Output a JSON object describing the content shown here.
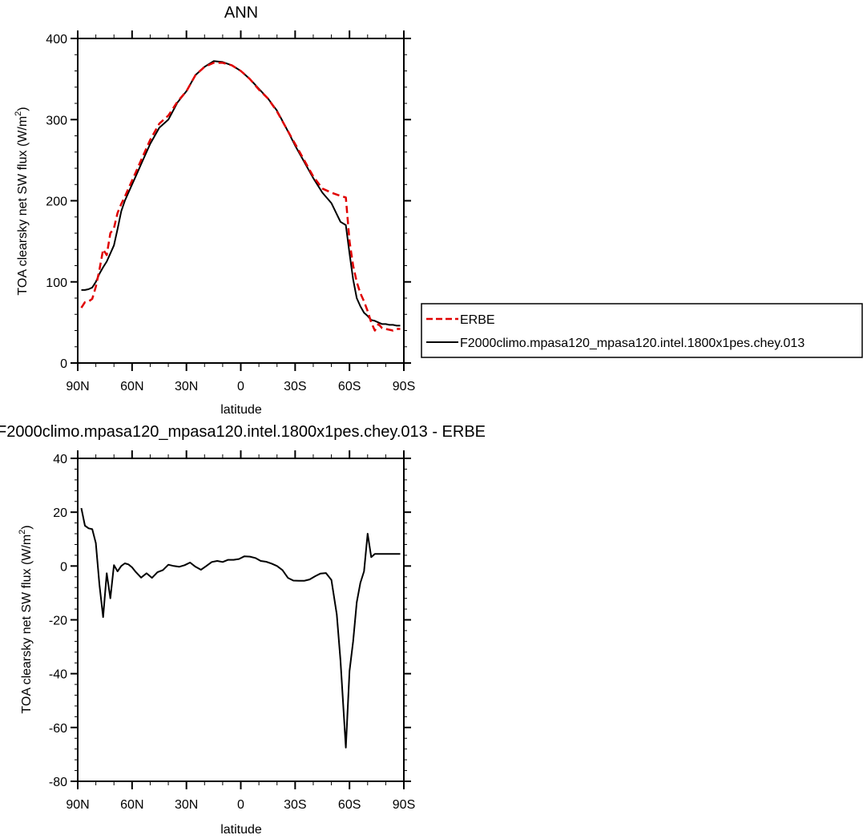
{
  "chart_data": [
    {
      "type": "line",
      "title": "ANN",
      "xlabel": "latitude",
      "ylabel": "TOA clearsky net SW flux (W/m²)",
      "ylabel_main": "TOA clearsky net SW flux (W/m",
      "ylabel_sup": "2",
      "ylabel_end": ")",
      "xlim": [
        90,
        -90
      ],
      "ylim": [
        0,
        400
      ],
      "x_ticks": [
        {
          "value": 90,
          "label": "90N"
        },
        {
          "value": 60,
          "label": "60N"
        },
        {
          "value": 30,
          "label": "30N"
        },
        {
          "value": 0,
          "label": "0"
        },
        {
          "value": -30,
          "label": "30S"
        },
        {
          "value": -60,
          "label": "60S"
        },
        {
          "value": -90,
          "label": "90S"
        }
      ],
      "y_ticks": [
        {
          "value": 0,
          "label": "0"
        },
        {
          "value": 100,
          "label": "100"
        },
        {
          "value": 200,
          "label": "200"
        },
        {
          "value": 300,
          "label": "300"
        },
        {
          "value": 400,
          "label": "400"
        }
      ],
      "legend_position": "right",
      "series": [
        {
          "name": "ERBE",
          "color": "#e00000",
          "dash": true,
          "x": [
            88,
            86,
            84,
            82,
            80,
            78,
            76,
            74,
            72,
            70,
            68,
            66,
            64,
            62,
            60,
            58,
            55,
            50,
            45,
            40,
            35,
            30,
            25,
            20,
            15,
            10,
            5,
            0,
            -5,
            -10,
            -15,
            -20,
            -25,
            -30,
            -35,
            -40,
            -45,
            -50,
            -55,
            -58,
            -60,
            -62,
            -64,
            -66,
            -68,
            -70,
            -72,
            -74,
            -76,
            -78,
            -80,
            -82,
            -84,
            -86,
            -88
          ],
          "y": [
            68,
            75,
            76,
            79,
            94,
            115,
            140,
            133,
            160,
            166,
            185,
            196,
            205,
            215,
            225,
            235,
            250,
            275,
            295,
            305,
            322,
            335,
            355,
            365,
            370,
            370,
            367,
            360,
            350,
            337,
            326,
            310,
            290,
            270,
            250,
            230,
            215,
            210,
            206,
            204,
            150,
            120,
            100,
            86,
            76,
            64,
            50,
            40,
            48,
            43,
            42,
            41,
            40,
            42,
            42
          ]
        },
        {
          "name": "F2000climo.mpasa120_mpasa120.intel.1800x1pes.chey.013",
          "color": "#000000",
          "dash": false,
          "x": [
            88,
            86,
            84,
            82,
            80,
            78,
            76,
            74,
            72,
            70,
            68,
            66,
            64,
            62,
            60,
            58,
            55,
            50,
            45,
            40,
            35,
            30,
            25,
            20,
            15,
            10,
            5,
            0,
            -5,
            -10,
            -15,
            -20,
            -25,
            -30,
            -35,
            -40,
            -45,
            -50,
            -55,
            -58,
            -60,
            -62,
            -64,
            -66,
            -68,
            -70,
            -72,
            -74,
            -76,
            -78,
            -80,
            -82,
            -84,
            -86,
            -88
          ],
          "y": [
            90,
            90,
            91,
            93,
            100,
            110,
            118,
            125,
            135,
            145,
            165,
            187,
            200,
            210,
            220,
            230,
            245,
            270,
            290,
            300,
            321,
            335,
            355,
            365,
            372,
            371,
            367,
            360,
            350,
            338,
            326,
            311,
            290,
            268,
            248,
            228,
            210,
            197,
            174,
            170,
            135,
            103,
            80,
            70,
            62,
            58,
            53,
            52,
            50,
            48,
            48,
            47,
            47,
            46,
            46
          ]
        }
      ]
    },
    {
      "type": "line",
      "title": "F2000climo.mpasa120_mpasa120.intel.1800x1pes.chey.013 - ERBE",
      "xlabel": "latitude",
      "ylabel": "TOA clearsky net SW flux (W/m²)",
      "ylabel_main": "TOA clearsky net SW flux (W/m",
      "ylabel_sup": "2",
      "ylabel_end": ")",
      "xlim": [
        90,
        -90
      ],
      "ylim": [
        -80,
        40
      ],
      "x_ticks": [
        {
          "value": 90,
          "label": "90N"
        },
        {
          "value": 60,
          "label": "60N"
        },
        {
          "value": 30,
          "label": "30N"
        },
        {
          "value": 0,
          "label": "0"
        },
        {
          "value": -30,
          "label": "30S"
        },
        {
          "value": -60,
          "label": "60S"
        },
        {
          "value": -90,
          "label": "90S"
        }
      ],
      "y_ticks": [
        {
          "value": -80,
          "label": "-80"
        },
        {
          "value": -60,
          "label": "-60"
        },
        {
          "value": -40,
          "label": "-40"
        },
        {
          "value": -20,
          "label": "-20"
        },
        {
          "value": 0,
          "label": "0"
        },
        {
          "value": 20,
          "label": "20"
        },
        {
          "value": 40,
          "label": "40"
        }
      ],
      "series": [
        {
          "name": "",
          "color": "#000000",
          "dash": false,
          "x": [
            88,
            86,
            84,
            82,
            80,
            78,
            76,
            74,
            72,
            70,
            68,
            66,
            64,
            62,
            60,
            58,
            55,
            52,
            49,
            46,
            43,
            40,
            37,
            34,
            31,
            28,
            25,
            22,
            19,
            16,
            13,
            10,
            7,
            4,
            1,
            -2,
            -5,
            -8,
            -11,
            -14,
            -17,
            -20,
            -23,
            -26,
            -29,
            -32,
            -35,
            -38,
            -41,
            -44,
            -47,
            -50,
            -53,
            -55,
            -58,
            -60,
            -62,
            -64,
            -66,
            -68,
            -70,
            -72,
            -74,
            -76,
            -78,
            -80,
            -82,
            -84,
            -86,
            -88
          ],
          "y": [
            21.5,
            15,
            14,
            13.7,
            8.5,
            -7,
            -19,
            -2.7,
            -12,
            0.3,
            -2,
            0,
            1,
            0.6,
            -0.5,
            -2.2,
            -4.3,
            -2.7,
            -4.4,
            -2.3,
            -1.5,
            0.5,
            0,
            -0.3,
            0.3,
            1.3,
            -0.3,
            -1.4,
            0,
            1.5,
            1.9,
            1.5,
            2.3,
            2.3,
            2.6,
            3.6,
            3.5,
            3,
            1.9,
            1.6,
            0.9,
            0,
            -1.5,
            -4.4,
            -5.4,
            -5.5,
            -5.5,
            -5,
            -3.8,
            -2.8,
            -2.6,
            -5.2,
            -18,
            -35,
            -67.5,
            -39,
            -28,
            -13.5,
            -6.3,
            -2,
            12,
            3.3,
            4.5,
            4.5,
            4.5,
            4.5,
            4.5,
            4.5,
            4.5,
            4.5
          ]
        }
      ]
    }
  ]
}
